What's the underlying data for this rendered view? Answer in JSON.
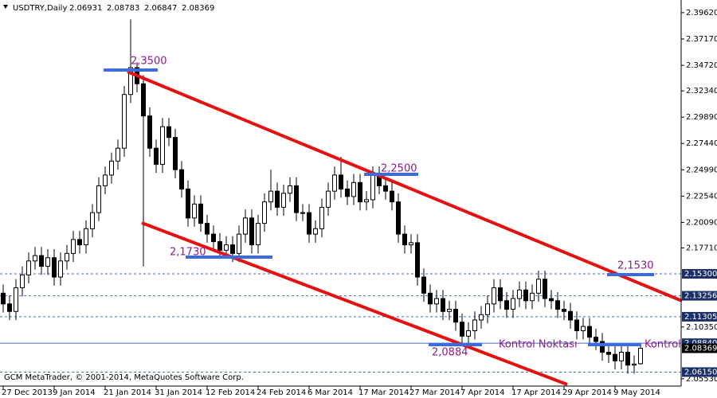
{
  "chart_data": {
    "type": "candlestick",
    "title": "USDTRY,Daily",
    "footer": "GCM MetaTrader, © 2001-2014, MetaQuotes Software Corp.",
    "categories": [
      "27 Dec 2013",
      null,
      null,
      null,
      null,
      null,
      null,
      null,
      "9 Jan 2014",
      null,
      null,
      null,
      null,
      null,
      null,
      null,
      "21 Jan 2014",
      null,
      null,
      null,
      null,
      null,
      null,
      null,
      "31 Jan 2014",
      null,
      null,
      null,
      null,
      null,
      null,
      null,
      "12 Feb 2014",
      null,
      null,
      null,
      null,
      null,
      null,
      null,
      "24 Feb 2014",
      null,
      null,
      null,
      null,
      null,
      null,
      null,
      "6 Mar 2014",
      null,
      null,
      null,
      null,
      null,
      null,
      null,
      "17 Mar 2014",
      null,
      null,
      null,
      null,
      null,
      null,
      null,
      "27 Mar 2014",
      null,
      null,
      null,
      null,
      null,
      null,
      null,
      "7 Apr 2014",
      null,
      null,
      null,
      null,
      null,
      null,
      null,
      "17 Apr 2014",
      null,
      null,
      null,
      null,
      null,
      null,
      null,
      "29 Apr 2014",
      null,
      null,
      null,
      null,
      null,
      null,
      null,
      "9 May 2014",
      null,
      null,
      null,
      null
    ],
    "candles": [
      [
        2.135,
        2.143,
        2.117,
        2.125
      ],
      [
        2.125,
        2.133,
        2.11,
        2.118
      ],
      [
        2.118,
        2.148,
        2.11,
        2.14
      ],
      [
        2.14,
        2.16,
        2.132,
        2.152
      ],
      [
        2.152,
        2.173,
        2.144,
        2.165
      ],
      [
        2.165,
        2.178,
        2.157,
        2.17
      ],
      [
        2.17,
        2.178,
        2.152,
        2.16
      ],
      [
        2.16,
        2.176,
        2.152,
        2.168
      ],
      [
        2.168,
        2.176,
        2.142,
        2.15
      ],
      [
        2.15,
        2.173,
        2.142,
        2.165
      ],
      [
        2.165,
        2.18,
        2.157,
        2.172
      ],
      [
        2.172,
        2.193,
        2.164,
        2.185
      ],
      [
        2.185,
        2.193,
        2.172,
        2.18
      ],
      [
        2.18,
        2.203,
        2.172,
        2.195
      ],
      [
        2.195,
        2.218,
        2.187,
        2.21
      ],
      [
        2.21,
        2.243,
        2.202,
        2.235
      ],
      [
        2.235,
        2.253,
        2.227,
        2.245
      ],
      [
        2.245,
        2.266,
        2.237,
        2.258
      ],
      [
        2.258,
        2.278,
        2.25,
        2.27
      ],
      [
        2.27,
        2.328,
        2.262,
        2.32
      ],
      [
        2.32,
        2.39,
        2.312,
        2.345
      ],
      [
        2.345,
        2.35,
        2.322,
        2.33
      ],
      [
        2.33,
        2.338,
        2.16,
        2.3
      ],
      [
        2.3,
        2.308,
        2.262,
        2.27
      ],
      [
        2.27,
        2.278,
        2.247,
        2.255
      ],
      [
        2.255,
        2.298,
        2.247,
        2.29
      ],
      [
        2.29,
        2.298,
        2.272,
        2.28
      ],
      [
        2.28,
        2.288,
        2.242,
        2.25
      ],
      [
        2.25,
        2.258,
        2.224,
        2.232
      ],
      [
        2.232,
        2.24,
        2.197,
        2.205
      ],
      [
        2.205,
        2.226,
        2.197,
        2.218
      ],
      [
        2.218,
        2.226,
        2.192,
        2.2
      ],
      [
        2.2,
        2.208,
        2.182,
        2.19
      ],
      [
        2.19,
        2.198,
        2.175,
        2.183
      ],
      [
        2.183,
        2.191,
        2.167,
        2.175
      ],
      [
        2.175,
        2.188,
        2.167,
        2.18
      ],
      [
        2.18,
        2.188,
        2.164,
        2.172
      ],
      [
        2.172,
        2.198,
        2.164,
        2.19
      ],
      [
        2.19,
        2.213,
        2.182,
        2.205
      ],
      [
        2.205,
        2.213,
        2.172,
        2.18
      ],
      [
        2.18,
        2.208,
        2.172,
        2.2
      ],
      [
        2.2,
        2.228,
        2.192,
        2.22
      ],
      [
        2.22,
        2.25,
        2.212,
        2.23
      ],
      [
        2.23,
        2.238,
        2.207,
        2.215
      ],
      [
        2.215,
        2.236,
        2.207,
        2.228
      ],
      [
        2.228,
        2.243,
        2.22,
        2.235
      ],
      [
        2.235,
        2.243,
        2.202,
        2.21
      ],
      [
        2.21,
        2.218,
        2.202,
        2.21
      ],
      [
        2.21,
        2.218,
        2.182,
        2.19
      ],
      [
        2.19,
        2.203,
        2.182,
        2.195
      ],
      [
        2.195,
        2.223,
        2.187,
        2.215
      ],
      [
        2.215,
        2.238,
        2.207,
        2.23
      ],
      [
        2.23,
        2.253,
        2.222,
        2.245
      ],
      [
        2.245,
        2.262,
        2.224,
        2.232
      ],
      [
        2.232,
        2.24,
        2.217,
        2.225
      ],
      [
        2.225,
        2.246,
        2.217,
        2.238
      ],
      [
        2.238,
        2.246,
        2.212,
        2.22
      ],
      [
        2.22,
        2.23,
        2.212,
        2.222
      ],
      [
        2.222,
        2.253,
        2.214,
        2.245
      ],
      [
        2.245,
        2.253,
        2.227,
        2.235
      ],
      [
        2.235,
        2.243,
        2.222,
        2.23
      ],
      [
        2.23,
        2.238,
        2.212,
        2.22
      ],
      [
        2.22,
        2.228,
        2.182,
        2.19
      ],
      [
        2.19,
        2.198,
        2.172,
        2.18
      ],
      [
        2.18,
        2.19,
        2.172,
        2.182
      ],
      [
        2.182,
        2.19,
        2.142,
        2.15
      ],
      [
        2.15,
        2.158,
        2.127,
        2.135
      ],
      [
        2.135,
        2.143,
        2.117,
        2.125
      ],
      [
        2.125,
        2.138,
        2.117,
        2.13
      ],
      [
        2.13,
        2.138,
        2.11,
        2.118
      ],
      [
        2.118,
        2.128,
        2.11,
        2.12
      ],
      [
        2.12,
        2.128,
        2.1,
        2.108
      ],
      [
        2.108,
        2.116,
        2.087,
        2.095
      ],
      [
        2.095,
        2.108,
        2.087,
        2.1
      ],
      [
        2.1,
        2.118,
        2.092,
        2.11
      ],
      [
        2.11,
        2.123,
        2.102,
        2.115
      ],
      [
        2.115,
        2.133,
        2.107,
        2.125
      ],
      [
        2.125,
        2.148,
        2.117,
        2.14
      ],
      [
        2.14,
        2.148,
        2.12,
        2.128
      ],
      [
        2.128,
        2.136,
        2.112,
        2.12
      ],
      [
        2.12,
        2.138,
        2.112,
        2.13
      ],
      [
        2.13,
        2.146,
        2.122,
        2.138
      ],
      [
        2.138,
        2.146,
        2.12,
        2.128
      ],
      [
        2.128,
        2.143,
        2.12,
        2.135
      ],
      [
        2.135,
        2.156,
        2.127,
        2.148
      ],
      [
        2.148,
        2.156,
        2.122,
        2.13
      ],
      [
        2.13,
        2.138,
        2.12,
        2.128
      ],
      [
        2.128,
        2.136,
        2.112,
        2.12
      ],
      [
        2.12,
        2.128,
        2.11,
        2.118
      ],
      [
        2.118,
        2.126,
        2.102,
        2.11
      ],
      [
        2.11,
        2.118,
        2.092,
        2.1
      ],
      [
        2.1,
        2.112,
        2.092,
        2.104
      ],
      [
        2.104,
        2.112,
        2.086,
        2.094
      ],
      [
        2.094,
        2.102,
        2.082,
        2.09
      ],
      [
        2.09,
        2.098,
        2.072,
        2.08
      ],
      [
        2.08,
        2.088,
        2.07,
        2.078
      ],
      [
        2.078,
        2.086,
        2.064,
        2.072
      ],
      [
        2.072,
        2.088,
        2.064,
        2.08
      ],
      [
        2.08,
        2.088,
        2.06,
        2.068
      ],
      [
        2.068,
        2.077,
        2.06,
        2.069
      ],
      [
        2.06931,
        2.08783,
        2.06847,
        2.08369
      ]
    ],
    "ylim": [
      2.0485,
      2.408
    ],
    "yticks": [
      {
        "value": 2.3962,
        "label": "2.39620"
      },
      {
        "value": 2.3717,
        "label": "2.37170"
      },
      {
        "value": 2.3472,
        "label": "2.34720"
      },
      {
        "value": 2.3234,
        "label": "2.32340"
      },
      {
        "value": 2.2989,
        "label": "2.29890"
      },
      {
        "value": 2.2744,
        "label": "2.27440"
      },
      {
        "value": 2.2499,
        "label": "2.24990"
      },
      {
        "value": 2.2254,
        "label": "2.22540"
      },
      {
        "value": 2.2009,
        "label": "2.20090"
      },
      {
        "value": 2.1771,
        "label": "2.17710"
      },
      {
        "value": 2.1035,
        "label": "2.10350"
      },
      {
        "value": 2.0553,
        "label": "2.05530"
      }
    ],
    "hlines": [
      {
        "value": 2.153,
        "label": "2.15300",
        "dashed": true
      },
      {
        "value": 2.13256,
        "label": "2.13256",
        "dashed": true
      },
      {
        "value": 2.11305,
        "label": "2.11305",
        "dashed": true
      },
      {
        "value": 2.0884,
        "label": "2.08840",
        "dashed": false
      },
      {
        "value": 2.0615,
        "label": "2.06150",
        "dashed": true
      }
    ],
    "hline_color": "#4a6aa8",
    "up_color": "#ffffff",
    "down_color": "#000000",
    "annotations": [
      "2,3500",
      "2,2500",
      "2,1730",
      "2,1530",
      "2,0884",
      "Kontrol Noktası",
      "Kontrol"
    ]
  }
}
